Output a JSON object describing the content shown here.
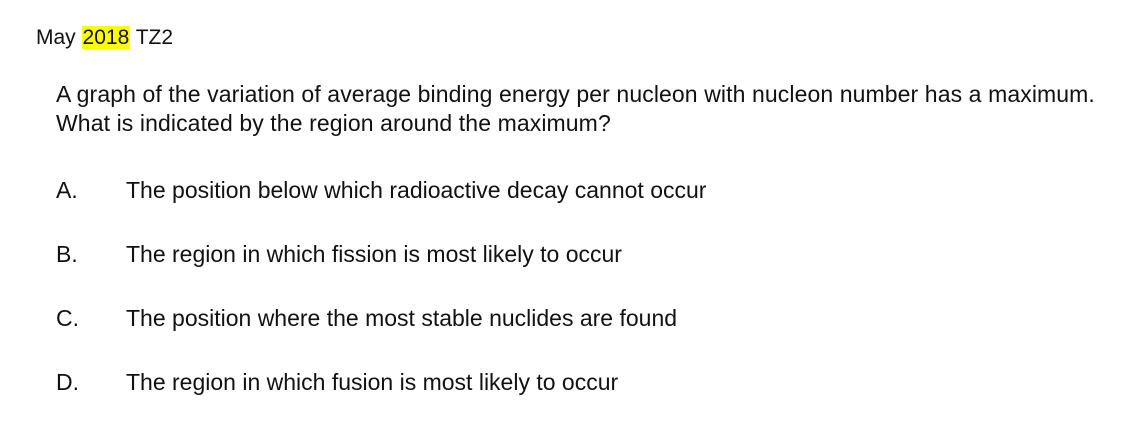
{
  "session": {
    "month": "May",
    "year": "2018",
    "zone": "TZ2",
    "highlight_color": "#ffff00"
  },
  "question": {
    "text": "A graph of the variation of average binding energy per nucleon with nucleon number has a maximum.  What is indicated by the region around the maximum?"
  },
  "options": [
    {
      "letter": "A.",
      "text": "The position below which radioactive decay cannot occur"
    },
    {
      "letter": "B.",
      "text": "The region in which fission is most likely to occur"
    },
    {
      "letter": "C.",
      "text": "The position where the most stable nuclides are found"
    },
    {
      "letter": "D.",
      "text": "The region in which fusion is most likely to occur"
    }
  ]
}
